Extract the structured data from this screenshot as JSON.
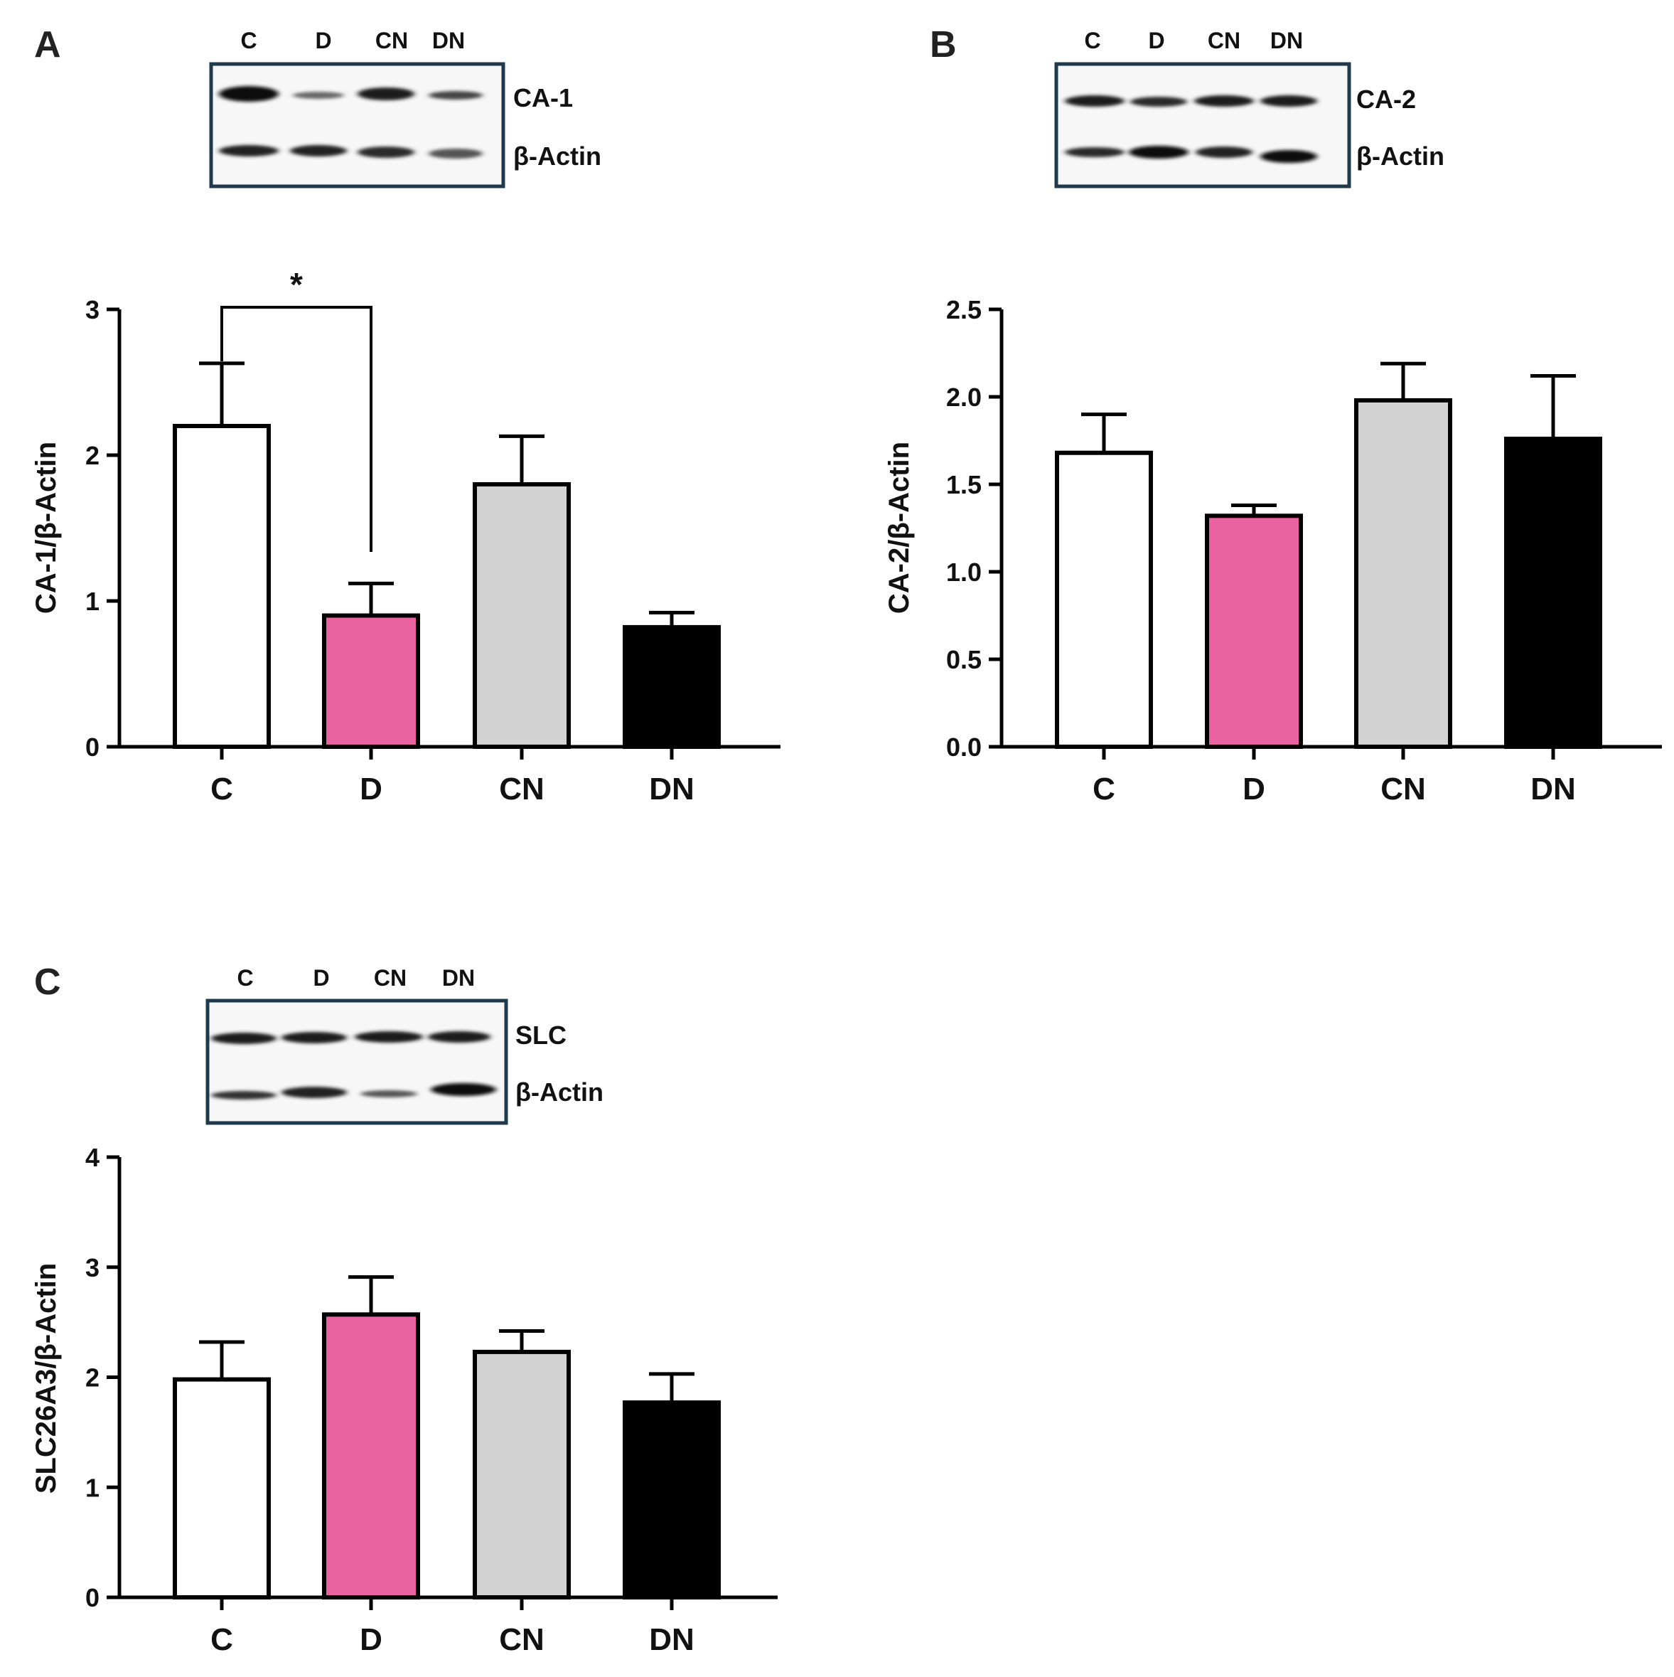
{
  "figure": {
    "panels": [
      {
        "letter": "A",
        "blot": {
          "lanes": [
            "C",
            "D",
            "CN",
            "DN"
          ],
          "bands": [
            "CA-1",
            "β-Actin"
          ]
        },
        "significance": [
          {
            "from": "C",
            "to": "D",
            "label": "*"
          }
        ]
      },
      {
        "letter": "B",
        "blot": {
          "lanes": [
            "C",
            "D",
            "CN",
            "DN"
          ],
          "bands": [
            "CA-2",
            "β-Actin"
          ]
        }
      },
      {
        "letter": "C",
        "blot": {
          "lanes": [
            "C",
            "D",
            "CN",
            "DN"
          ],
          "bands": [
            "SLC",
            "β-Actin"
          ]
        }
      }
    ]
  },
  "chart_data": [
    {
      "type": "bar",
      "categories": [
        "C",
        "D",
        "CN",
        "DN"
      ],
      "values": [
        2.2,
        0.9,
        1.8,
        0.82
      ],
      "errors": [
        0.43,
        0.22,
        0.33,
        0.1
      ],
      "colors": [
        "#ffffff",
        "#e8639f",
        "#d3d3d3",
        "#000000"
      ],
      "ylabel": "CA-1/β-Actin",
      "xlabel": "",
      "ylim": [
        0,
        3
      ],
      "yticks": [
        0,
        1,
        2,
        3
      ],
      "ytick_labels": [
        "0",
        "1",
        "2",
        "3"
      ]
    },
    {
      "type": "bar",
      "categories": [
        "C",
        "D",
        "CN",
        "DN"
      ],
      "values": [
        1.68,
        1.32,
        1.98,
        1.76
      ],
      "errors": [
        0.22,
        0.06,
        0.21,
        0.36
      ],
      "colors": [
        "#ffffff",
        "#e8639f",
        "#d3d3d3",
        "#000000"
      ],
      "ylabel": "CA-2/β-Actin",
      "xlabel": "",
      "ylim": [
        0,
        2.5
      ],
      "yticks": [
        0,
        0.5,
        1,
        1.5,
        2,
        2.5
      ],
      "ytick_labels": [
        "0.0",
        "0.5",
        "1.0",
        "1.5",
        "2.0",
        "2.5"
      ]
    },
    {
      "type": "bar",
      "categories": [
        "C",
        "D",
        "CN",
        "DN"
      ],
      "values": [
        1.98,
        2.57,
        2.23,
        1.77
      ],
      "errors": [
        0.34,
        0.34,
        0.19,
        0.26
      ],
      "colors": [
        "#ffffff",
        "#e8639f",
        "#d3d3d3",
        "#000000"
      ],
      "ylabel": "SLC26A3/β-Actin",
      "xlabel": "",
      "ylim": [
        0,
        4
      ],
      "yticks": [
        0,
        1,
        2,
        3,
        4
      ],
      "ytick_labels": [
        "0",
        "1",
        "2",
        "3",
        "4"
      ]
    }
  ]
}
